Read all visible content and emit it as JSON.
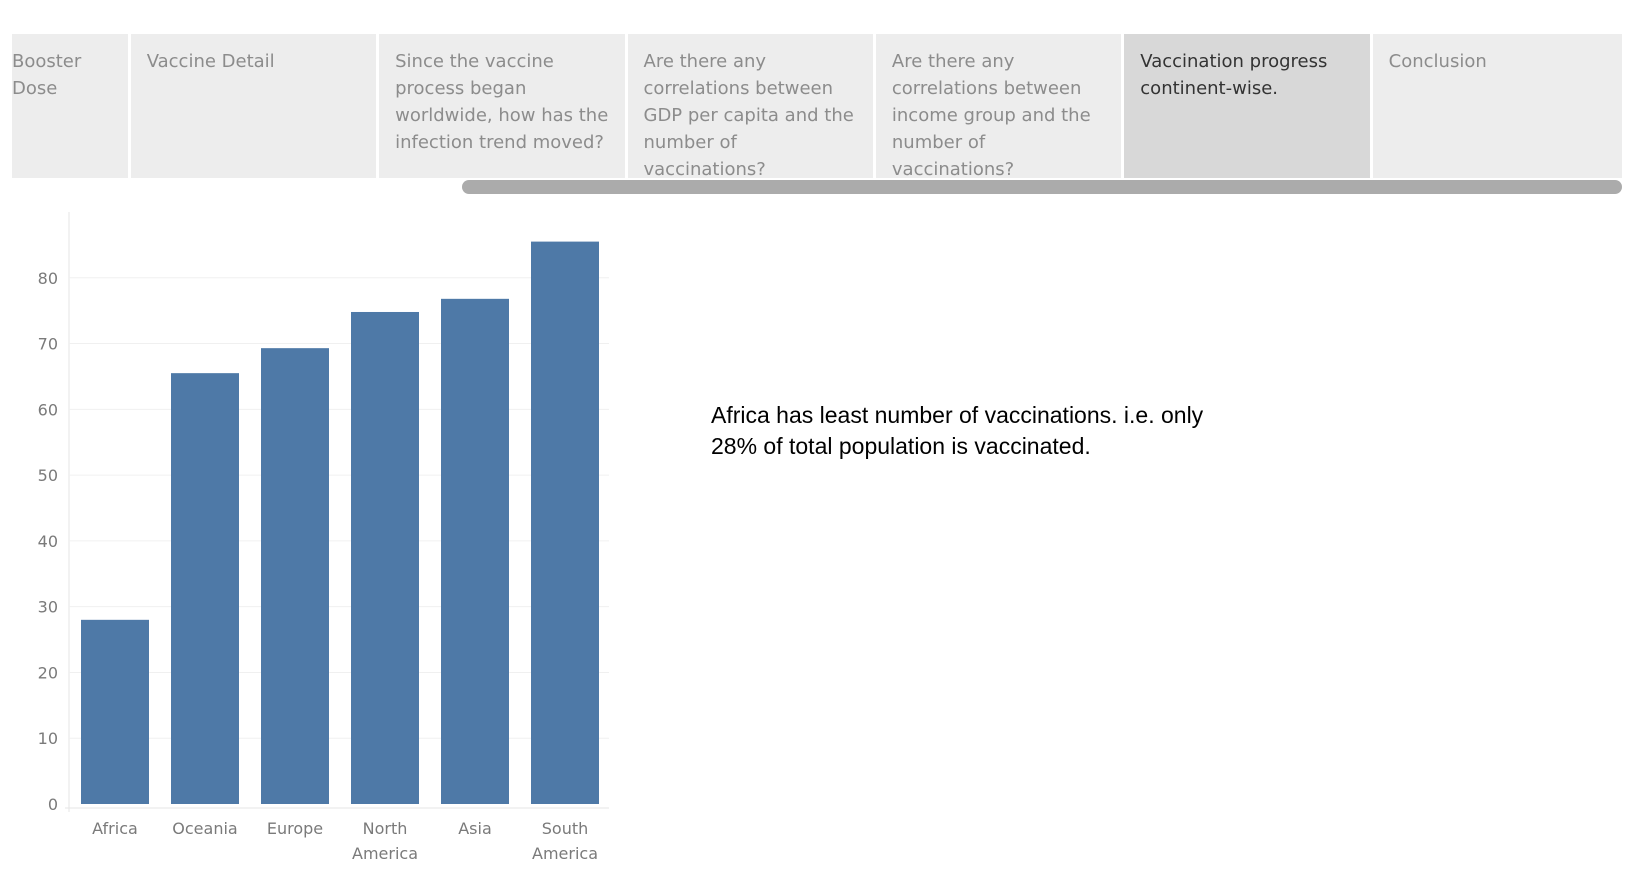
{
  "tabs": [
    {
      "label": "Booster Dose",
      "active": false
    },
    {
      "label": "Vaccine Detail",
      "active": false
    },
    {
      "label": "Since the vaccine process began worldwide, how has the infection trend moved?",
      "active": false
    },
    {
      "label": "Are there any correlations between GDP per capita and the number of vaccinations?",
      "active": false
    },
    {
      "label": "Are there any correlations between income group and the number of vaccinations?",
      "active": false
    },
    {
      "label": "Vaccination progress continent-wise.",
      "active": true
    },
    {
      "label": "Conclusion",
      "active": false
    }
  ],
  "note": {
    "line1": "Africa has least number of vaccinations. i.e. only",
    "line2": "28% of total population is vaccinated."
  },
  "chart_data": {
    "type": "bar",
    "categories": [
      [
        "Africa"
      ],
      [
        "Oceania"
      ],
      [
        "Europe"
      ],
      [
        "North",
        "America"
      ],
      [
        "Asia"
      ],
      [
        "South",
        "America"
      ]
    ],
    "values": [
      28,
      65.5,
      69.3,
      74.8,
      76.8,
      85.5
    ],
    "yticks": [
      "0",
      "10",
      "20",
      "30",
      "40",
      "50",
      "60",
      "70",
      "80"
    ],
    "ylim": [
      0,
      90
    ],
    "grid": true,
    "bar_color": "#4e79a7",
    "title": "",
    "xlabel": "",
    "ylabel": ""
  }
}
